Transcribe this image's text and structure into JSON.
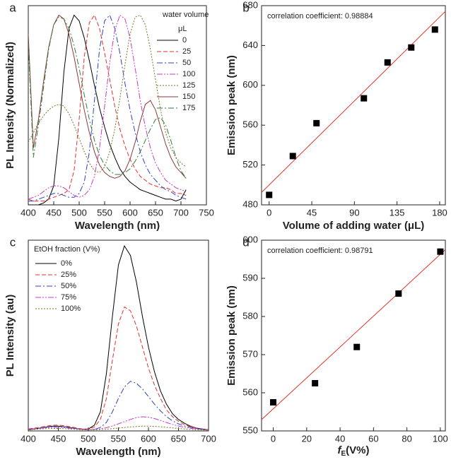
{
  "chart_data": [
    {
      "type": "line",
      "panel": "a",
      "xlabel": "Wavelength (nm)",
      "ylabel": "PL Intensity (Normalized)",
      "legend_title": "water volume",
      "legend_unit": "μL",
      "legend": "upper right",
      "xlim": [
        400,
        750
      ],
      "xticks": [
        400,
        450,
        500,
        550,
        600,
        650,
        700,
        750
      ],
      "ylim": [
        0,
        1.05
      ],
      "x": [
        400,
        410,
        420,
        430,
        440,
        450,
        460,
        470,
        480,
        490,
        500,
        510,
        520,
        530,
        540,
        550,
        560,
        570,
        580,
        590,
        600,
        610,
        620,
        630,
        640,
        650,
        660,
        670,
        680,
        690,
        700,
        710
      ],
      "series": [
        {
          "name": "0",
          "color": "#000000",
          "line_style": "solid",
          "values": [
            0,
            0,
            0,
            0.01,
            0.03,
            0.1,
            0.35,
            0.7,
            0.93,
            1.0,
            0.97,
            0.88,
            0.76,
            0.63,
            0.51,
            0.41,
            0.32,
            0.25,
            0.19,
            0.15,
            0.12,
            0.1,
            0.08,
            0.07,
            0.06,
            0.05,
            0.04,
            0.03,
            0.03,
            0.02,
            0.03,
            0.08
          ]
        },
        {
          "name": "25",
          "color": "#e3312b",
          "line_style": "dashed",
          "values": [
            0.03,
            0.02,
            0.02,
            0.02,
            0.03,
            0.04,
            0.05,
            0.06,
            0.08,
            0.18,
            0.45,
            0.78,
            0.96,
            1.0,
            0.93,
            0.8,
            0.66,
            0.52,
            0.4,
            0.31,
            0.24,
            0.19,
            0.15,
            0.13,
            0.11,
            0.1,
            0.09,
            0.09,
            0.08,
            0.06,
            0.06,
            0.05
          ]
        },
        {
          "name": "50",
          "color": "#2b43c0",
          "line_style": "dashdot",
          "values": [
            0.02,
            0.02,
            0.03,
            0.04,
            0.05,
            0.06,
            0.06,
            0.05,
            0.04,
            0.04,
            0.06,
            0.12,
            0.28,
            0.55,
            0.82,
            0.97,
            1.0,
            0.93,
            0.8,
            0.64,
            0.5,
            0.38,
            0.28,
            0.21,
            0.16,
            0.13,
            0.1,
            0.08,
            0.07,
            0.05,
            0.04,
            0.03
          ]
        },
        {
          "name": "100",
          "color": "#c53cc5",
          "line_style": "dashdotdot",
          "values": [
            0.03,
            0.04,
            0.05,
            0.07,
            0.09,
            0.1,
            0.1,
            0.09,
            0.07,
            0.05,
            0.04,
            0.05,
            0.08,
            0.15,
            0.3,
            0.52,
            0.75,
            0.92,
            1.0,
            0.98,
            0.88,
            0.72,
            0.55,
            0.41,
            0.3,
            0.22,
            0.17,
            0.13,
            0.11,
            0.09,
            0.08,
            0.07
          ]
        },
        {
          "name": "125",
          "color": "#75761f",
          "line_style": "dotted",
          "values": [
            0.33,
            0.38,
            0.43,
            0.47,
            0.5,
            0.52,
            0.53,
            0.52,
            0.48,
            0.42,
            0.35,
            0.28,
            0.22,
            0.18,
            0.17,
            0.2,
            0.28,
            0.4,
            0.56,
            0.74,
            0.9,
            0.99,
            1.0,
            0.95,
            0.82,
            0.66,
            0.5,
            0.38,
            0.3,
            0.25,
            0.22,
            0.2
          ]
        },
        {
          "name": "150",
          "color": "#8c3a3a",
          "line_style": "solid",
          "values": [
            0.9,
            0.3,
            0.45,
            0.65,
            0.83,
            0.95,
            1.0,
            0.98,
            0.9,
            0.78,
            0.64,
            0.5,
            0.38,
            0.28,
            0.21,
            0.17,
            0.15,
            0.14,
            0.15,
            0.18,
            0.24,
            0.33,
            0.44,
            0.53,
            0.55,
            0.5,
            0.41,
            0.32,
            0.25,
            0.2,
            0.17,
            0.14
          ]
        },
        {
          "name": "175",
          "color": "#2f7d3a",
          "line_style": "dashdot",
          "values": [
            0.85,
            0.25,
            0.42,
            0.62,
            0.82,
            0.95,
            0.99,
            0.98,
            0.93,
            0.84,
            0.72,
            0.58,
            0.45,
            0.34,
            0.26,
            0.21,
            0.18,
            0.16,
            0.16,
            0.17,
            0.19,
            0.23,
            0.28,
            0.34,
            0.4,
            0.45,
            0.46,
            0.42,
            0.34,
            0.25,
            0.18,
            0.14
          ]
        }
      ]
    },
    {
      "type": "scatter",
      "panel": "b",
      "xlabel": "Volume of adding water (μL)",
      "ylabel": "Emission peak (nm)",
      "annotation": "correlation coefficient: 0.98884",
      "xlim": [
        -8,
        186
      ],
      "xticks": [
        0,
        45,
        90,
        135,
        180
      ],
      "ylim": [
        480,
        680
      ],
      "yticks": [
        480,
        520,
        560,
        600,
        640,
        680
      ],
      "x": [
        0,
        25,
        50,
        100,
        125,
        150,
        175
      ],
      "values": [
        490,
        529,
        562,
        587,
        623,
        638,
        656
      ],
      "color": "#000000",
      "fit": {
        "slope": 0.937,
        "intercept": 500,
        "color": "#e3312b"
      }
    },
    {
      "type": "line",
      "panel": "c",
      "xlabel": "Wavelength (nm)",
      "ylabel": "PL Intensity (au)",
      "legend_title": "EtOH fraction (V%)",
      "legend": "upper left",
      "xlim": [
        400,
        700
      ],
      "xticks": [
        400,
        450,
        500,
        550,
        600,
        650,
        700
      ],
      "ylim": [
        0,
        100
      ],
      "x": [
        400,
        410,
        420,
        430,
        440,
        450,
        460,
        470,
        480,
        490,
        500,
        510,
        520,
        530,
        540,
        550,
        560,
        570,
        580,
        590,
        600,
        610,
        620,
        630,
        640,
        650,
        660,
        670,
        680,
        690,
        700
      ],
      "series": [
        {
          "name": "0%",
          "color": "#000000",
          "line_style": "solid",
          "values": [
            0.5,
            1,
            1.5,
            2,
            2.5,
            2.5,
            2.2,
            1.7,
            1.2,
            0.8,
            1,
            3,
            10,
            30,
            60,
            87,
            97,
            92,
            78,
            60,
            44,
            31,
            21,
            14,
            9,
            6,
            4,
            2.5,
            1.5,
            1,
            0.6
          ]
        },
        {
          "name": "25%",
          "color": "#e3312b",
          "line_style": "dashed",
          "values": [
            1,
            1.5,
            2,
            2.5,
            3,
            3,
            2.7,
            2.2,
            1.6,
            1,
            1,
            2,
            6,
            17,
            37,
            56,
            65,
            63,
            55,
            44,
            33,
            24,
            17,
            11,
            7.5,
            5,
            3.3,
            2.2,
            1.4,
            0.9,
            0.6
          ]
        },
        {
          "name": "50%",
          "color": "#2b43c0",
          "line_style": "dashdot",
          "values": [
            0.8,
            1.2,
            1.6,
            2,
            2.3,
            2.3,
            2.1,
            1.7,
            1.2,
            0.8,
            0.6,
            0.8,
            1.8,
            4.5,
            10,
            17,
            23,
            26,
            25,
            22,
            18,
            14,
            10.5,
            7.5,
            5.3,
            3.7,
            2.6,
            1.8,
            1.2,
            0.8,
            0.5
          ]
        },
        {
          "name": "75%",
          "color": "#c53cc5",
          "line_style": "dashdotdot",
          "values": [
            0.8,
            1.1,
            1.4,
            1.7,
            1.9,
            1.9,
            1.7,
            1.4,
            1,
            0.8,
            0.7,
            0.8,
            1.1,
            1.7,
            2.6,
            3.7,
            4.9,
            6,
            7,
            7.4,
            7.2,
            6.5,
            5.5,
            4.4,
            3.4,
            2.6,
            1.9,
            1.4,
            1,
            0.7,
            0.5
          ]
        },
        {
          "name": "100%",
          "color": "#75761f",
          "line_style": "dotted",
          "values": [
            0.6,
            0.8,
            1,
            1.2,
            1.3,
            1.3,
            1.2,
            1,
            0.8,
            0.6,
            0.5,
            0.6,
            0.7,
            0.9,
            1.2,
            1.5,
            1.8,
            2.1,
            2.3,
            2.5,
            2.5,
            2.4,
            2.2,
            1.9,
            1.6,
            1.3,
            1,
            0.8,
            0.6,
            0.5,
            0.4
          ]
        }
      ]
    },
    {
      "type": "scatter",
      "panel": "d",
      "xlabel_parts": [
        "f",
        "E",
        "(V%)"
      ],
      "ylabel": "Emission peak (nm)",
      "annotation": "correlation coefficient: 0.98791",
      "xlim": [
        -7,
        103
      ],
      "xticks": [
        0,
        20,
        40,
        60,
        80,
        100
      ],
      "ylim": [
        550,
        600
      ],
      "yticks": [
        550,
        560,
        570,
        580,
        590,
        600
      ],
      "x": [
        0,
        25,
        50,
        75,
        100
      ],
      "values": [
        557.5,
        562.5,
        572,
        586,
        597
      ],
      "color": "#000000",
      "fit": {
        "slope": 0.405,
        "intercept": 555.8,
        "color": "#e3312b"
      }
    }
  ]
}
